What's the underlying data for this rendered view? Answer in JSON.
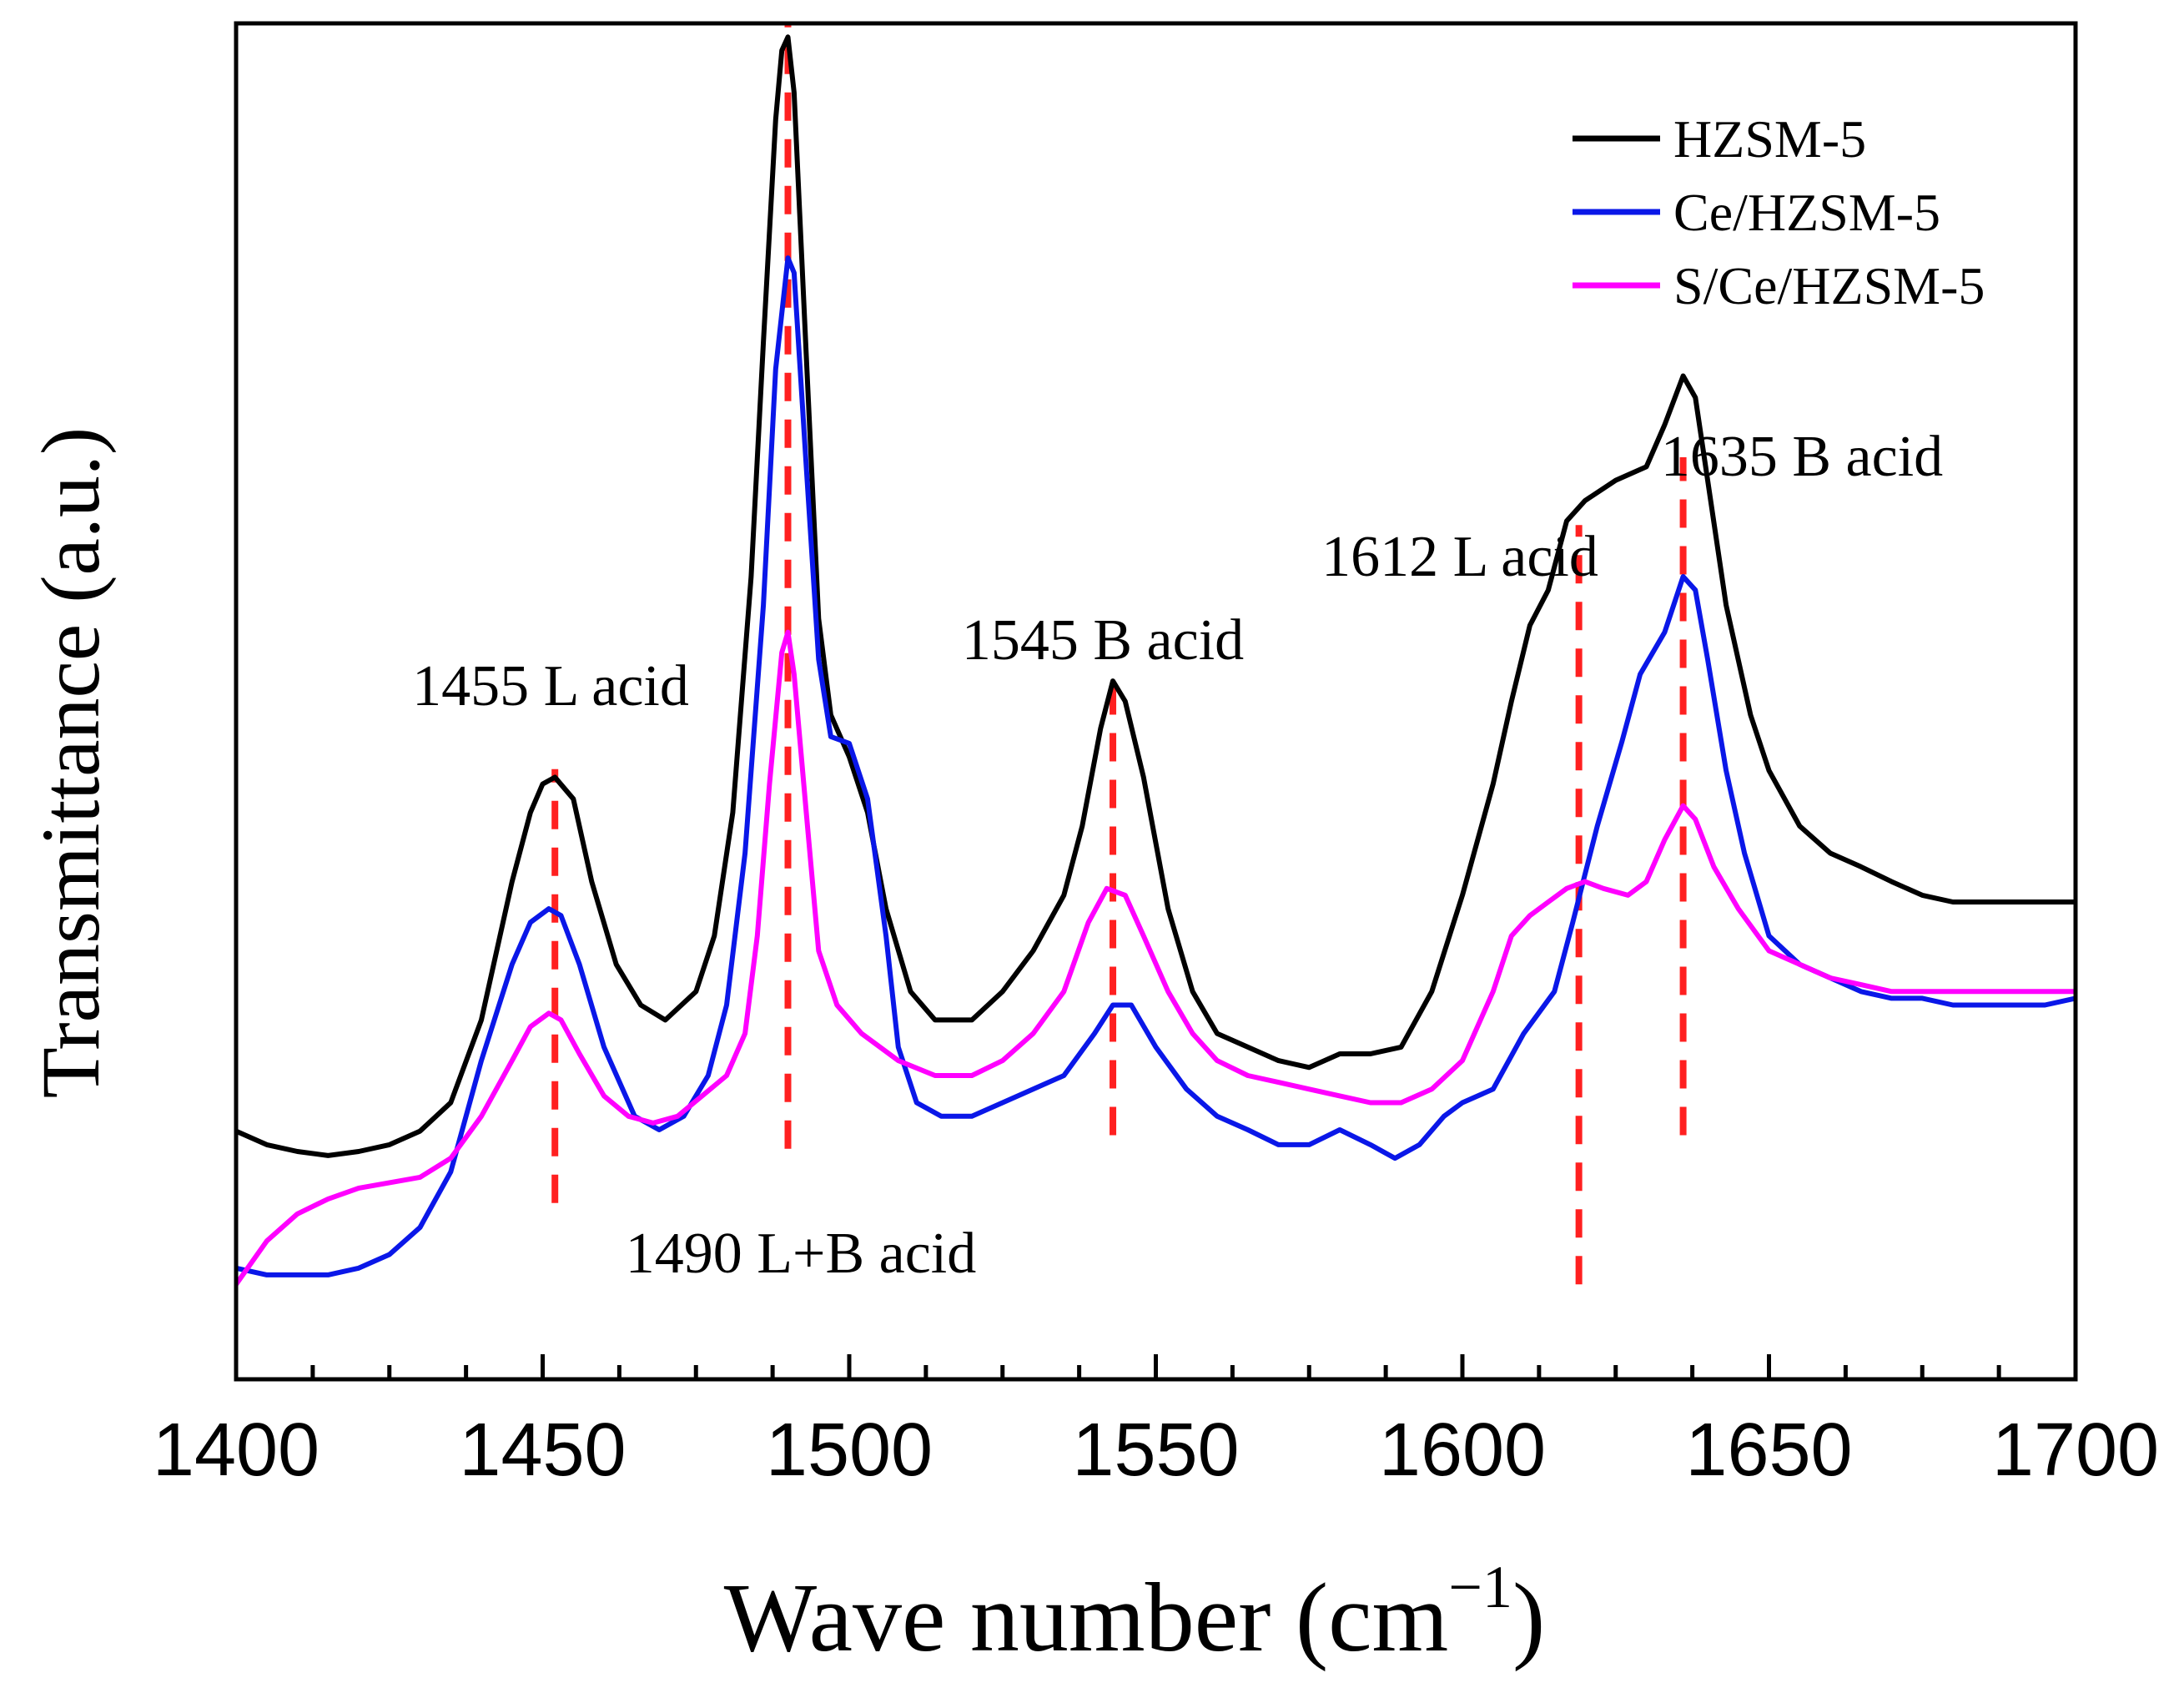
{
  "chart_data": {
    "type": "line",
    "xlabel": "Wave number (cm",
    "xlabel_unit_exponent": "−1",
    "xlabel_close": ")",
    "ylabel": "Transmittance (a.u.)",
    "xlim": [
      1400,
      1700
    ],
    "ylim": [
      0,
      100
    ],
    "x_ticks": [
      1400,
      1450,
      1500,
      1550,
      1600,
      1650,
      1700
    ],
    "x_minor_step": 12.5,
    "y_ticks_shown": false,
    "legend_position": "top-right",
    "series": [
      {
        "name": "HZSM-5",
        "color": "#000000",
        "points": [
          [
            1400,
            18.3
          ],
          [
            1405,
            17.3
          ],
          [
            1410,
            16.8
          ],
          [
            1415,
            16.5
          ],
          [
            1420,
            16.8
          ],
          [
            1425,
            17.3
          ],
          [
            1430,
            18.3
          ],
          [
            1435,
            20.4
          ],
          [
            1440,
            26.5
          ],
          [
            1445,
            36.7
          ],
          [
            1448,
            41.8
          ],
          [
            1450,
            43.9
          ],
          [
            1452,
            44.4
          ],
          [
            1455,
            42.8
          ],
          [
            1458,
            36.7
          ],
          [
            1462,
            30.6
          ],
          [
            1466,
            27.6
          ],
          [
            1470,
            26.5
          ],
          [
            1475,
            28.6
          ],
          [
            1478,
            32.7
          ],
          [
            1481,
            41.8
          ],
          [
            1484,
            59.2
          ],
          [
            1486,
            76.5
          ],
          [
            1488,
            92.9
          ],
          [
            1489,
            98.0
          ],
          [
            1490,
            99.0
          ],
          [
            1491,
            94.9
          ],
          [
            1493,
            75.5
          ],
          [
            1495,
            56.1
          ],
          [
            1497,
            49.0
          ],
          [
            1500,
            45.9
          ],
          [
            1503,
            41.8
          ],
          [
            1506,
            34.7
          ],
          [
            1510,
            28.6
          ],
          [
            1514,
            26.5
          ],
          [
            1520,
            26.5
          ],
          [
            1525,
            28.6
          ],
          [
            1530,
            31.6
          ],
          [
            1535,
            35.7
          ],
          [
            1538,
            40.8
          ],
          [
            1541,
            48.0
          ],
          [
            1543,
            51.5
          ],
          [
            1545,
            50.0
          ],
          [
            1548,
            44.4
          ],
          [
            1552,
            34.7
          ],
          [
            1556,
            28.6
          ],
          [
            1560,
            25.5
          ],
          [
            1565,
            24.5
          ],
          [
            1570,
            23.5
          ],
          [
            1575,
            23.0
          ],
          [
            1580,
            24.0
          ],
          [
            1585,
            24.0
          ],
          [
            1590,
            24.5
          ],
          [
            1595,
            28.6
          ],
          [
            1600,
            35.7
          ],
          [
            1605,
            43.9
          ],
          [
            1608,
            50.0
          ],
          [
            1611,
            55.6
          ],
          [
            1614,
            58.2
          ],
          [
            1617,
            63.3
          ],
          [
            1620,
            64.8
          ],
          [
            1625,
            66.3
          ],
          [
            1630,
            67.3
          ],
          [
            1633,
            70.4
          ],
          [
            1636,
            74.0
          ],
          [
            1638,
            72.4
          ],
          [
            1640,
            66.3
          ],
          [
            1643,
            57.1
          ],
          [
            1647,
            49.0
          ],
          [
            1650,
            44.9
          ],
          [
            1655,
            40.8
          ],
          [
            1660,
            38.8
          ],
          [
            1665,
            37.8
          ],
          [
            1670,
            36.7
          ],
          [
            1675,
            35.7
          ],
          [
            1680,
            35.2
          ],
          [
            1685,
            35.2
          ],
          [
            1690,
            35.2
          ],
          [
            1695,
            35.2
          ],
          [
            1700,
            35.2
          ]
        ]
      },
      {
        "name": "Ce/HZSM-5",
        "color": "#0a17e8",
        "points": [
          [
            1400,
            8.2
          ],
          [
            1405,
            7.7
          ],
          [
            1410,
            7.7
          ],
          [
            1415,
            7.7
          ],
          [
            1420,
            8.2
          ],
          [
            1425,
            9.2
          ],
          [
            1430,
            11.2
          ],
          [
            1435,
            15.3
          ],
          [
            1440,
            23.5
          ],
          [
            1445,
            30.6
          ],
          [
            1448,
            33.7
          ],
          [
            1451,
            34.7
          ],
          [
            1453,
            34.2
          ],
          [
            1456,
            30.6
          ],
          [
            1460,
            24.5
          ],
          [
            1465,
            19.4
          ],
          [
            1469,
            18.4
          ],
          [
            1473,
            19.4
          ],
          [
            1477,
            22.4
          ],
          [
            1480,
            27.6
          ],
          [
            1483,
            38.8
          ],
          [
            1486,
            57.1
          ],
          [
            1488,
            74.5
          ],
          [
            1490,
            82.7
          ],
          [
            1491,
            81.6
          ],
          [
            1493,
            67.3
          ],
          [
            1495,
            53.1
          ],
          [
            1497,
            47.4
          ],
          [
            1500,
            46.9
          ],
          [
            1503,
            42.8
          ],
          [
            1506,
            32.7
          ],
          [
            1508,
            24.5
          ],
          [
            1511,
            20.4
          ],
          [
            1515,
            19.4
          ],
          [
            1520,
            19.4
          ],
          [
            1525,
            20.4
          ],
          [
            1530,
            21.4
          ],
          [
            1535,
            22.4
          ],
          [
            1540,
            25.5
          ],
          [
            1543,
            27.6
          ],
          [
            1546,
            27.6
          ],
          [
            1550,
            24.5
          ],
          [
            1555,
            21.4
          ],
          [
            1560,
            19.4
          ],
          [
            1565,
            18.4
          ],
          [
            1570,
            17.3
          ],
          [
            1575,
            17.3
          ],
          [
            1580,
            18.4
          ],
          [
            1585,
            17.3
          ],
          [
            1589,
            16.3
          ],
          [
            1593,
            17.3
          ],
          [
            1597,
            19.4
          ],
          [
            1600,
            20.4
          ],
          [
            1605,
            21.4
          ],
          [
            1610,
            25.5
          ],
          [
            1615,
            28.6
          ],
          [
            1618,
            33.7
          ],
          [
            1622,
            40.8
          ],
          [
            1626,
            47.0
          ],
          [
            1629,
            52.0
          ],
          [
            1633,
            55.1
          ],
          [
            1636,
            59.2
          ],
          [
            1638,
            58.2
          ],
          [
            1640,
            53.1
          ],
          [
            1643,
            44.9
          ],
          [
            1646,
            38.8
          ],
          [
            1650,
            32.7
          ],
          [
            1655,
            30.6
          ],
          [
            1660,
            29.6
          ],
          [
            1665,
            28.6
          ],
          [
            1670,
            28.1
          ],
          [
            1675,
            28.1
          ],
          [
            1680,
            27.6
          ],
          [
            1685,
            27.6
          ],
          [
            1690,
            27.6
          ],
          [
            1695,
            27.6
          ],
          [
            1700,
            28.1
          ]
        ]
      },
      {
        "name": "S/Ce/HZSM-5",
        "color": "#ff00ff",
        "points": [
          [
            1400,
            7.0
          ],
          [
            1405,
            10.2
          ],
          [
            1410,
            12.2
          ],
          [
            1415,
            13.3
          ],
          [
            1420,
            14.1
          ],
          [
            1425,
            14.5
          ],
          [
            1430,
            14.9
          ],
          [
            1435,
            16.3
          ],
          [
            1440,
            19.4
          ],
          [
            1445,
            23.5
          ],
          [
            1448,
            26.0
          ],
          [
            1451,
            27.0
          ],
          [
            1453,
            26.5
          ],
          [
            1456,
            24.0
          ],
          [
            1460,
            20.9
          ],
          [
            1464,
            19.4
          ],
          [
            1468,
            18.9
          ],
          [
            1472,
            19.4
          ],
          [
            1476,
            20.9
          ],
          [
            1480,
            22.4
          ],
          [
            1483,
            25.5
          ],
          [
            1485,
            32.7
          ],
          [
            1487,
            43.9
          ],
          [
            1489,
            53.6
          ],
          [
            1490,
            55.1
          ],
          [
            1491,
            52.0
          ],
          [
            1493,
            41.8
          ],
          [
            1495,
            31.6
          ],
          [
            1498,
            27.6
          ],
          [
            1502,
            25.5
          ],
          [
            1508,
            23.5
          ],
          [
            1514,
            22.4
          ],
          [
            1520,
            22.4
          ],
          [
            1525,
            23.5
          ],
          [
            1530,
            25.5
          ],
          [
            1535,
            28.6
          ],
          [
            1539,
            33.7
          ],
          [
            1542,
            36.2
          ],
          [
            1545,
            35.7
          ],
          [
            1548,
            32.7
          ],
          [
            1552,
            28.6
          ],
          [
            1556,
            25.5
          ],
          [
            1560,
            23.5
          ],
          [
            1565,
            22.4
          ],
          [
            1570,
            21.9
          ],
          [
            1575,
            21.4
          ],
          [
            1580,
            20.9
          ],
          [
            1585,
            20.4
          ],
          [
            1590,
            20.4
          ],
          [
            1595,
            21.4
          ],
          [
            1600,
            23.5
          ],
          [
            1605,
            28.6
          ],
          [
            1608,
            32.7
          ],
          [
            1611,
            34.2
          ],
          [
            1614,
            35.2
          ],
          [
            1617,
            36.2
          ],
          [
            1620,
            36.7
          ],
          [
            1623,
            36.2
          ],
          [
            1627,
            35.7
          ],
          [
            1630,
            36.7
          ],
          [
            1633,
            39.8
          ],
          [
            1636,
            42.3
          ],
          [
            1638,
            41.3
          ],
          [
            1641,
            37.8
          ],
          [
            1645,
            34.7
          ],
          [
            1650,
            31.6
          ],
          [
            1655,
            30.6
          ],
          [
            1660,
            29.6
          ],
          [
            1665,
            29.1
          ],
          [
            1670,
            28.6
          ],
          [
            1680,
            28.6
          ],
          [
            1690,
            28.6
          ],
          [
            1700,
            28.6
          ]
        ]
      }
    ],
    "annotations": [
      {
        "text": "1455 L acid",
        "line_x": 1452,
        "line_y_range": [
          13,
          45
        ]
      },
      {
        "text": "1490 L+B acid",
        "line_x": 1490,
        "line_y_range": [
          17,
          100
        ]
      },
      {
        "text": "1545 B acid",
        "line_x": 1543,
        "line_y_range": [
          18,
          52
        ]
      },
      {
        "text": "1612 L acid",
        "line_x": 1619,
        "line_y_range": [
          7,
          63
        ]
      },
      {
        "text": "1635 B acid",
        "line_x": 1636,
        "line_y_range": [
          18,
          68
        ]
      }
    ],
    "annotation_line_color": "#ff2020"
  }
}
